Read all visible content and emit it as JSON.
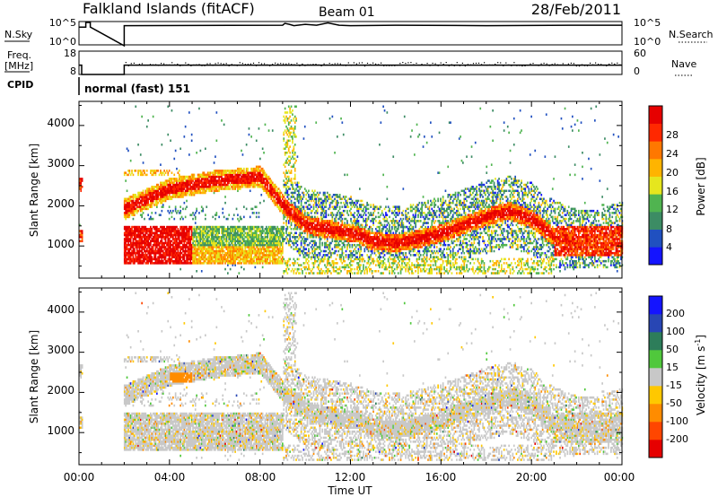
{
  "header": {
    "station": "Falkland Islands (fitACF)",
    "beam": "Beam 01",
    "date": "28/Feb/2011"
  },
  "colors": {
    "panel_grey": "#c8c8c8"
  },
  "chart_data": [
    {
      "type": "line",
      "panel": "nsky",
      "left_label": "N.Sky",
      "right_label": "N.Search",
      "left_ticks": [
        "10^5",
        "10^0"
      ],
      "right_ticks": [
        "10^5",
        "10^0"
      ],
      "x": [
        0,
        0.3,
        0.3,
        0.5,
        0.5,
        2,
        2,
        9,
        9.1,
        9.3,
        9.5,
        10,
        10.5,
        11,
        11.5,
        12,
        14,
        18,
        22,
        24
      ],
      "values": [
        4,
        4,
        5,
        5,
        4,
        0,
        4.3,
        4.4,
        4.8,
        4.6,
        4.3,
        4.6,
        4.4,
        4.9,
        4.4,
        4.3,
        4.4,
        4.3,
        4.4,
        4.4
      ]
    },
    {
      "type": "line",
      "panel": "freq",
      "left_label": "Freq.",
      "left_unit": "[MHz]",
      "right_label": "Nave",
      "left_ticks": [
        "18",
        "8"
      ],
      "right_ticks": [
        "60",
        "0"
      ],
      "x": [
        0,
        0.12,
        0.12,
        2,
        2,
        24
      ],
      "values": [
        12,
        12,
        8,
        8,
        12,
        12
      ]
    },
    {
      "type": "table",
      "panel": "cpid",
      "label": "CPID",
      "text": "normal (fast) 151"
    },
    {
      "type": "heatmap",
      "panel": "power",
      "ylabel": "Slant Range [km]",
      "yticks": [
        "1000",
        "2000",
        "3000",
        "4000"
      ],
      "ylim": [
        200,
        4600
      ],
      "xlim": [
        0,
        24
      ],
      "colorbar_label": "Power [dB]",
      "colorbar_ticks": [
        "4",
        "8",
        "12",
        "16",
        "20",
        "24",
        "28"
      ],
      "colorbar_colors": [
        "#1414ff",
        "#2050c0",
        "#3c8c64",
        "#50b450",
        "#e6e61e",
        "#ffb400",
        "#ff7800",
        "#ff2800",
        "#e60000"
      ],
      "ridge_x": [
        2,
        4,
        6,
        7,
        8,
        9,
        10,
        11,
        12,
        13,
        14,
        15,
        16,
        17,
        18,
        19,
        20,
        21,
        22,
        23,
        24
      ],
      "ridge_y": [
        1900,
        2400,
        2600,
        2650,
        2700,
        2000,
        1500,
        1400,
        1300,
        1100,
        1050,
        1150,
        1300,
        1500,
        1700,
        1850,
        1650,
        1200,
        1000,
        1000,
        1200
      ]
    },
    {
      "type": "heatmap",
      "panel": "velocity",
      "ylabel": "Slant Range [km]",
      "yticks": [
        "1000",
        "2000",
        "3000",
        "4000"
      ],
      "ylim": [
        200,
        4600
      ],
      "xlim": [
        0,
        24
      ],
      "colorbar_label": "Velocity [m s",
      "colorbar_unit_sup": "-1",
      "colorbar_ticks": [
        "-200",
        "-100",
        "-50",
        "-15",
        "15",
        "50",
        "100",
        "200"
      ],
      "colorbar_colors": [
        "#e60000",
        "#ff4600",
        "#ff8c00",
        "#ffc800",
        "#c8c8c8",
        "#50c83c",
        "#2d7d5a",
        "#2846b4",
        "#1414ff"
      ],
      "xticks": [
        "00:00",
        "04:00",
        "08:00",
        "12:00",
        "16:00",
        "20:00",
        "00:00"
      ],
      "xlabel": "Time UT"
    }
  ]
}
